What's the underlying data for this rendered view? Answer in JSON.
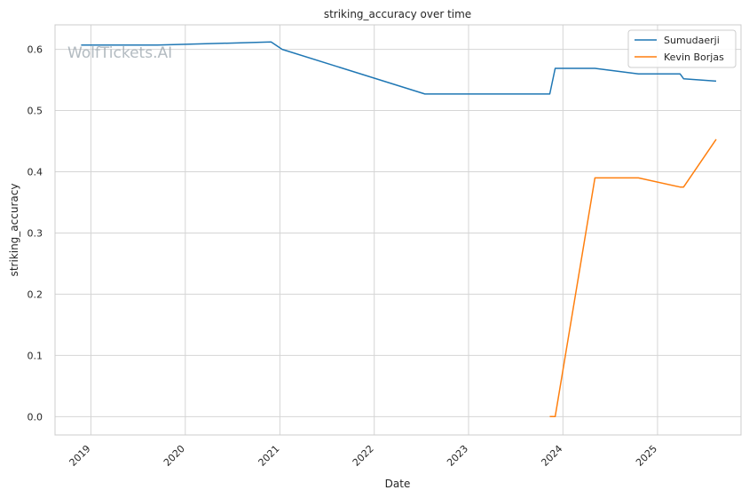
{
  "chart_data": {
    "type": "line",
    "title": "striking_accuracy over time",
    "xlabel": "Date",
    "ylabel": "striking_accuracy",
    "watermark": "WolfTickets.AI",
    "x_ticks": [
      "2019",
      "2020",
      "2021",
      "2022",
      "2023",
      "2024",
      "2025"
    ],
    "y_ticks": [
      "0.0",
      "0.1",
      "0.2",
      "0.3",
      "0.4",
      "0.5",
      "0.6"
    ],
    "xlim": [
      "2018-08-15",
      "2025-11-20"
    ],
    "ylim": [
      -0.03,
      0.64
    ],
    "grid": true,
    "legend": "top-right",
    "series": [
      {
        "name": "Sumudaerji",
        "color": "#1f77b4",
        "points": [
          [
            "2018-11-24",
            0.607
          ],
          [
            "2019-09-15",
            0.607
          ],
          [
            "2020-11-28",
            0.612
          ],
          [
            "2021-01-10",
            0.6
          ],
          [
            "2022-07-16",
            0.527
          ],
          [
            "2023-11-11",
            0.527
          ],
          [
            "2023-12-02",
            0.569
          ],
          [
            "2024-05-04",
            0.569
          ],
          [
            "2024-10-19",
            0.56
          ],
          [
            "2025-03-29",
            0.56
          ],
          [
            "2025-04-12",
            0.552
          ],
          [
            "2025-08-16",
            0.548
          ]
        ]
      },
      {
        "name": "Kevin Borjas",
        "color": "#ff7f0e",
        "points": [
          [
            "2023-11-11",
            0.0
          ],
          [
            "2023-12-02",
            0.0
          ],
          [
            "2024-05-04",
            0.39
          ],
          [
            "2024-10-19",
            0.39
          ],
          [
            "2025-03-29",
            0.375
          ],
          [
            "2025-04-12",
            0.375
          ],
          [
            "2025-08-16",
            0.453
          ]
        ]
      }
    ]
  }
}
